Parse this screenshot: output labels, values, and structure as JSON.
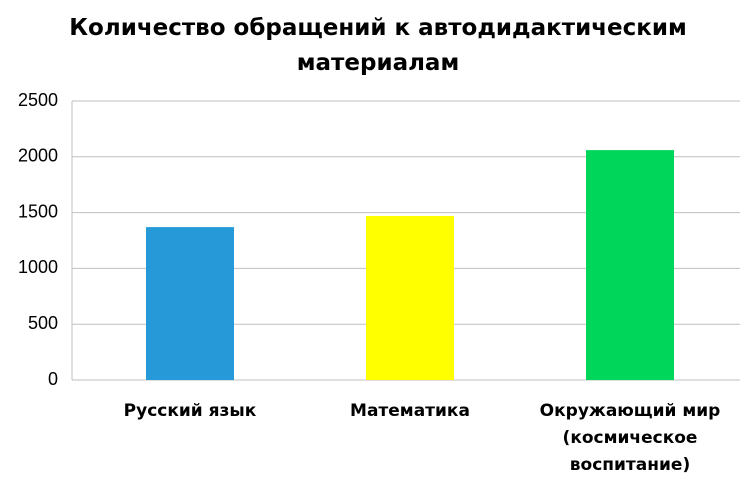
{
  "chart_data": {
    "type": "bar",
    "title": "Количество обращений к автодидактическим материалам",
    "categories": [
      "Русский язык",
      "Математика",
      "Окружающий мир (космическое воспитание)"
    ],
    "values": [
      1370,
      1470,
      2060
    ],
    "colors": [
      "#269ad8",
      "#ffff00",
      "#00d65a"
    ],
    "ylim": [
      0,
      2500
    ],
    "yticks": [
      0,
      500,
      1000,
      1500,
      2000,
      2500
    ],
    "grid": true
  }
}
